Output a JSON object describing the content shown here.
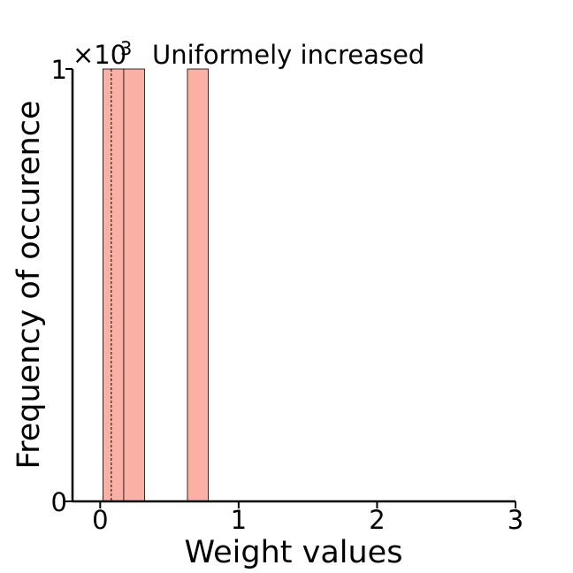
{
  "chart_data": {
    "type": "bar",
    "title": "Uniformely increased",
    "xlabel": "Weight values",
    "ylabel": "Frequency of occurence",
    "y_multiplier": {
      "base": "×10",
      "exponent": "3"
    },
    "xlim": [
      -0.2,
      3.0
    ],
    "ylim": [
      0,
      1
    ],
    "x_ticks": [
      0,
      1,
      2,
      3
    ],
    "y_ticks": [
      0,
      1
    ],
    "grid": false,
    "legend": false,
    "bar_color": "#fbb0a5",
    "bar_edge_color": "#000000",
    "bars": [
      {
        "x0": 0.02,
        "x1": 0.17,
        "value": 1.0
      },
      {
        "x0": 0.17,
        "x1": 0.32,
        "value": 1.0
      },
      {
        "x0": 0.63,
        "x1": 0.78,
        "value": 1.0
      }
    ],
    "reference_line": {
      "x": 0.08,
      "style": "dashed"
    }
  }
}
